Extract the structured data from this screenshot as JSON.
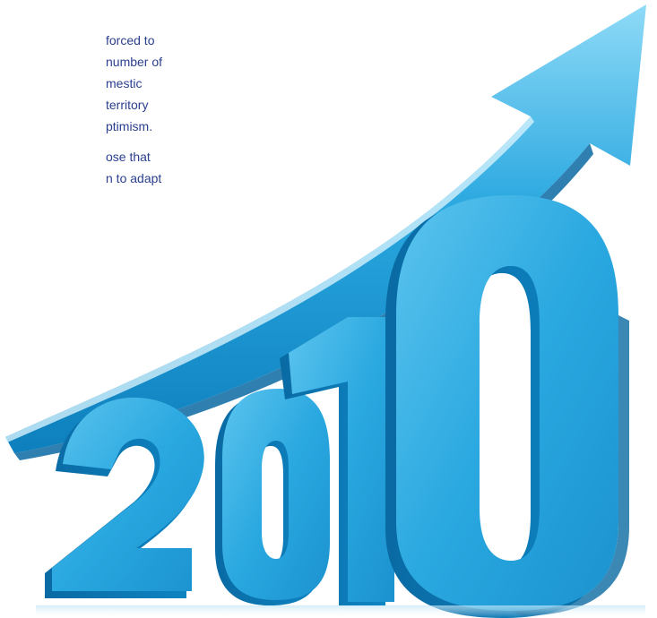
{
  "article": {
    "paragraph_1": [
      "forced to",
      "number of",
      "mestic",
      "territory",
      "ptimism."
    ],
    "paragraph_2": [
      "ose that",
      "n to adapt"
    ]
  },
  "illustration": {
    "year_text": "2010",
    "primary_color": "#2aa8e0",
    "dark_color": "#0a75b0",
    "light_color": "#7fd3f5"
  }
}
